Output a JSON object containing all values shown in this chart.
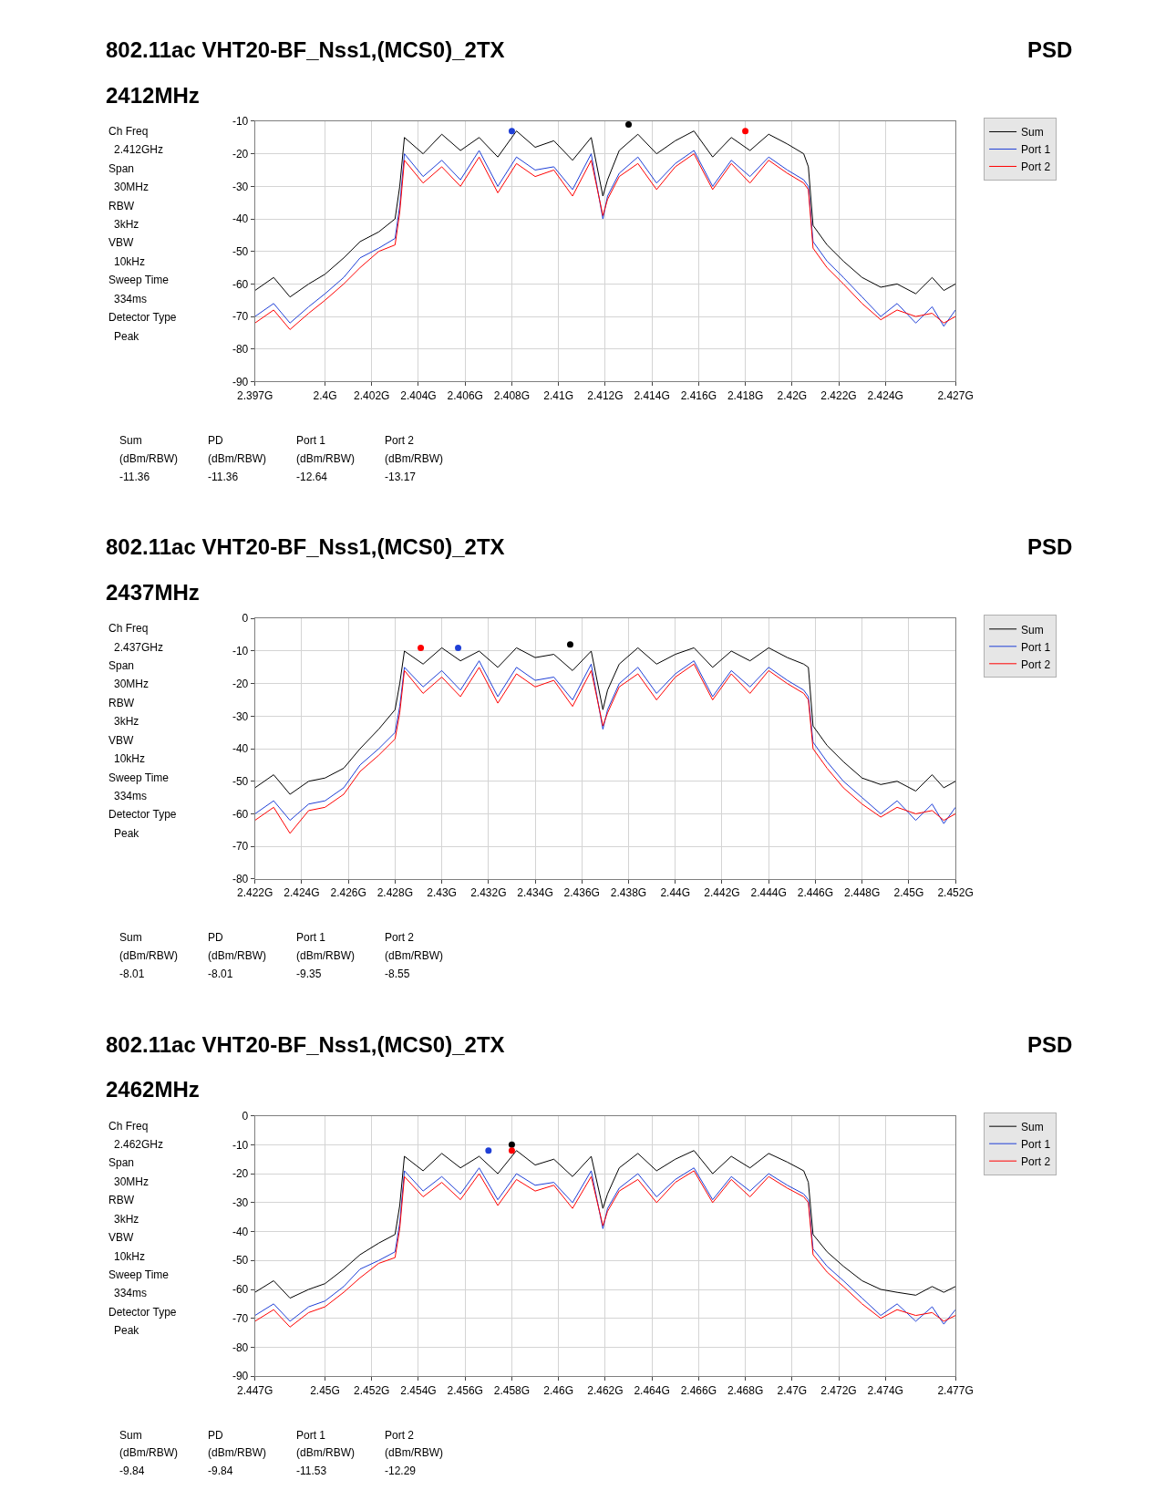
{
  "chart_data": [
    {
      "type": "line",
      "title": "802.11ac VHT20-BF_Nss1,(MCS0)_2TX",
      "subtitle": "2412MHz",
      "grid": true,
      "legend": "right",
      "annotations": [
        "PSD",
        "Ch Freq",
        "2.412GHz",
        "Span",
        "30MHz",
        "RBW",
        "3kHz",
        "VBW",
        "10kHz",
        "Sweep Time",
        "334ms",
        "Detector Type",
        "Peak",
        "Sum",
        "PD",
        "Port 1",
        "Port 2",
        "(dBm/RBW)",
        "(dBm/RBW)",
        "(dBm/RBW)",
        "(dBm/RBW)",
        "-11.36",
        "-11.36",
        "-12.64",
        "-13.17"
      ],
      "xlim": [
        2.397,
        2.427
      ],
      "ylim": [
        -90,
        -10
      ],
      "xticks": [
        {
          "value": 2.397,
          "label": "2.397G"
        },
        {
          "value": 2.4,
          "label": "2.4G"
        },
        {
          "value": 2.402,
          "label": "2.402G"
        },
        {
          "value": 2.404,
          "label": "2.404G"
        },
        {
          "value": 2.406,
          "label": "2.406G"
        },
        {
          "value": 2.408,
          "label": "2.408G"
        },
        {
          "value": 2.41,
          "label": "2.41G"
        },
        {
          "value": 2.412,
          "label": "2.412G"
        },
        {
          "value": 2.414,
          "label": "2.414G"
        },
        {
          "value": 2.416,
          "label": "2.416G"
        },
        {
          "value": 2.418,
          "label": "2.418G"
        },
        {
          "value": 2.42,
          "label": "2.42G"
        },
        {
          "value": 2.422,
          "label": "2.422G"
        },
        {
          "value": 2.424,
          "label": "2.424G"
        },
        {
          "value": 2.427,
          "label": "2.427G"
        }
      ],
      "yticks": [
        -90,
        -80,
        -70,
        -60,
        -50,
        -40,
        -30,
        -20,
        -10
      ],
      "x": [
        2.397,
        2.3978,
        2.3985,
        2.3993,
        2.4,
        2.4008,
        2.4015,
        2.4023,
        2.403,
        2.4032,
        2.4034,
        2.4042,
        2.405,
        2.4058,
        2.4066,
        2.4074,
        2.4082,
        2.409,
        2.4098,
        2.4106,
        2.4114,
        2.4119,
        2.4121,
        2.4126,
        2.4134,
        2.4142,
        2.415,
        2.4158,
        2.4166,
        2.4174,
        2.4182,
        2.419,
        2.4198,
        2.4205,
        2.4207,
        2.4209,
        2.4215,
        2.4222,
        2.423,
        2.4238,
        2.4245,
        2.4253,
        2.426,
        2.4265,
        2.427
      ],
      "series": [
        {
          "name": "Sum",
          "color": "#000000",
          "values": [
            -62,
            -58,
            -64,
            -60,
            -57,
            -52,
            -47,
            -44,
            -40,
            -30,
            -15,
            -20,
            -14,
            -19,
            -15,
            -21,
            -13,
            -18,
            -16,
            -22,
            -15,
            -33,
            -28,
            -19,
            -14,
            -20,
            -16,
            -13,
            -21,
            -15,
            -19,
            -14,
            -17,
            -20,
            -24,
            -42,
            -48,
            -53,
            -58,
            -61,
            -60,
            -63,
            -58,
            -62,
            -60
          ]
        },
        {
          "name": "Port 1",
          "color": "#1f3fd6",
          "values": [
            -70,
            -66,
            -72,
            -67,
            -63,
            -58,
            -52,
            -49,
            -46,
            -36,
            -20,
            -27,
            -22,
            -28,
            -19,
            -30,
            -21,
            -25,
            -24,
            -31,
            -20,
            -40,
            -33,
            -26,
            -21,
            -29,
            -23,
            -19,
            -30,
            -22,
            -27,
            -21,
            -25,
            -28,
            -30,
            -47,
            -53,
            -58,
            -64,
            -70,
            -66,
            -72,
            -67,
            -73,
            -68
          ]
        },
        {
          "name": "Port 2",
          "color": "#ff0000",
          "values": [
            -72,
            -68,
            -74,
            -69,
            -65,
            -60,
            -55,
            -50,
            -48,
            -38,
            -22,
            -29,
            -24,
            -30,
            -21,
            -32,
            -23,
            -27,
            -25,
            -33,
            -22,
            -39,
            -34,
            -27,
            -23,
            -31,
            -24,
            -20,
            -31,
            -23,
            -29,
            -22,
            -26,
            -29,
            -31,
            -49,
            -55,
            -60,
            -66,
            -71,
            -68,
            -70,
            -69,
            -72,
            -70
          ]
        },
        {
          "type": "scatter",
          "marker": "circle",
          "color": "#000000",
          "x": [
            2.413
          ],
          "values": [
            -11
          ]
        },
        {
          "type": "scatter",
          "marker": "circle",
          "color": "#1f3fd6",
          "x": [
            2.408
          ],
          "values": [
            -13
          ]
        },
        {
          "type": "scatter",
          "marker": "circle",
          "color": "#ff0000",
          "x": [
            2.418
          ],
          "values": [
            -13
          ]
        }
      ]
    },
    {
      "type": "line",
      "title": "802.11ac VHT20-BF_Nss1,(MCS0)_2TX",
      "subtitle": "2437MHz",
      "grid": true,
      "legend": "right",
      "annotations": [
        "PSD",
        "Ch Freq",
        "2.437GHz",
        "Span",
        "30MHz",
        "RBW",
        "3kHz",
        "VBW",
        "10kHz",
        "Sweep Time",
        "334ms",
        "Detector Type",
        "Peak",
        "Sum",
        "PD",
        "Port 1",
        "Port 2",
        "(dBm/RBW)",
        "(dBm/RBW)",
        "(dBm/RBW)",
        "(dBm/RBW)",
        "-8.01",
        "-8.01",
        "-9.35",
        "-8.55"
      ],
      "xlim": [
        2.422,
        2.452
      ],
      "ylim": [
        -80,
        0
      ],
      "xticks": [
        {
          "value": 2.422,
          "label": "2.422G"
        },
        {
          "value": 2.424,
          "label": "2.424G"
        },
        {
          "value": 2.426,
          "label": "2.426G"
        },
        {
          "value": 2.428,
          "label": "2.428G"
        },
        {
          "value": 2.43,
          "label": "2.43G"
        },
        {
          "value": 2.432,
          "label": "2.432G"
        },
        {
          "value": 2.434,
          "label": "2.434G"
        },
        {
          "value": 2.436,
          "label": "2.436G"
        },
        {
          "value": 2.438,
          "label": "2.438G"
        },
        {
          "value": 2.44,
          "label": "2.44G"
        },
        {
          "value": 2.442,
          "label": "2.442G"
        },
        {
          "value": 2.444,
          "label": "2.444G"
        },
        {
          "value": 2.446,
          "label": "2.446G"
        },
        {
          "value": 2.448,
          "label": "2.448G"
        },
        {
          "value": 2.45,
          "label": "2.45G"
        },
        {
          "value": 2.452,
          "label": "2.452G"
        }
      ],
      "yticks": [
        -80,
        -70,
        -60,
        -50,
        -40,
        -30,
        -20,
        -10,
        0
      ],
      "x": [
        2.422,
        2.4228,
        2.4235,
        2.4243,
        2.425,
        2.4258,
        2.4265,
        2.4273,
        2.428,
        2.4282,
        2.4284,
        2.4292,
        2.43,
        2.4308,
        2.4316,
        2.4324,
        2.4332,
        2.434,
        2.4348,
        2.4356,
        2.4364,
        2.4369,
        2.4371,
        2.4376,
        2.4384,
        2.4392,
        2.44,
        2.4408,
        2.4416,
        2.4424,
        2.4432,
        2.444,
        2.4448,
        2.4455,
        2.4457,
        2.4459,
        2.4465,
        2.4472,
        2.448,
        2.4488,
        2.4495,
        2.4503,
        2.451,
        2.4515,
        2.452
      ],
      "series": [
        {
          "name": "Sum",
          "color": "#000000",
          "values": [
            -52,
            -48,
            -54,
            -50,
            -49,
            -46,
            -40,
            -34,
            -28,
            -20,
            -10,
            -14,
            -9,
            -13,
            -10,
            -15,
            -9,
            -12,
            -11,
            -16,
            -10,
            -28,
            -22,
            -14,
            -9,
            -14,
            -11,
            -9,
            -15,
            -10,
            -13,
            -9,
            -12,
            -14,
            -15,
            -33,
            -39,
            -44,
            -49,
            -51,
            -50,
            -53,
            -48,
            -52,
            -50
          ]
        },
        {
          "name": "Port 1",
          "color": "#1f3fd6",
          "values": [
            -60,
            -56,
            -62,
            -57,
            -56,
            -52,
            -45,
            -40,
            -35,
            -27,
            -15,
            -21,
            -16,
            -22,
            -13,
            -24,
            -15,
            -19,
            -18,
            -25,
            -14,
            -34,
            -28,
            -20,
            -15,
            -23,
            -17,
            -13,
            -24,
            -16,
            -21,
            -15,
            -19,
            -22,
            -24,
            -38,
            -44,
            -50,
            -55,
            -60,
            -56,
            -62,
            -57,
            -63,
            -58
          ]
        },
        {
          "name": "Port 2",
          "color": "#ff0000",
          "values": [
            -62,
            -58,
            -66,
            -59,
            -58,
            -54,
            -47,
            -42,
            -37,
            -29,
            -16,
            -23,
            -18,
            -24,
            -15,
            -26,
            -17,
            -21,
            -19,
            -27,
            -16,
            -33,
            -29,
            -21,
            -17,
            -25,
            -18,
            -14,
            -25,
            -17,
            -23,
            -16,
            -20,
            -23,
            -25,
            -40,
            -46,
            -52,
            -57,
            -61,
            -58,
            -60,
            -59,
            -62,
            -60
          ]
        },
        {
          "type": "scatter",
          "marker": "circle",
          "color": "#000000",
          "x": [
            2.4355
          ],
          "values": [
            -8
          ]
        },
        {
          "type": "scatter",
          "marker": "circle",
          "color": "#1f3fd6",
          "x": [
            2.4307
          ],
          "values": [
            -9
          ]
        },
        {
          "type": "scatter",
          "marker": "circle",
          "color": "#ff0000",
          "x": [
            2.4291
          ],
          "values": [
            -9
          ]
        }
      ]
    },
    {
      "type": "line",
      "title": "802.11ac VHT20-BF_Nss1,(MCS0)_2TX",
      "subtitle": "2462MHz",
      "grid": true,
      "legend": "right",
      "annotations": [
        "PSD",
        "Ch Freq",
        "2.462GHz",
        "Span",
        "30MHz",
        "RBW",
        "3kHz",
        "VBW",
        "10kHz",
        "Sweep Time",
        "334ms",
        "Detector Type",
        "Peak",
        "Sum",
        "PD",
        "Port 1",
        "Port 2",
        "(dBm/RBW)",
        "(dBm/RBW)",
        "(dBm/RBW)",
        "(dBm/RBW)",
        "-9.84",
        "-9.84",
        "-11.53",
        "-12.29"
      ],
      "xlim": [
        2.447,
        2.477
      ],
      "ylim": [
        -90,
        0
      ],
      "xticks": [
        {
          "value": 2.447,
          "label": "2.447G"
        },
        {
          "value": 2.45,
          "label": "2.45G"
        },
        {
          "value": 2.452,
          "label": "2.452G"
        },
        {
          "value": 2.454,
          "label": "2.454G"
        },
        {
          "value": 2.456,
          "label": "2.456G"
        },
        {
          "value": 2.458,
          "label": "2.458G"
        },
        {
          "value": 2.46,
          "label": "2.46G"
        },
        {
          "value": 2.462,
          "label": "2.462G"
        },
        {
          "value": 2.464,
          "label": "2.464G"
        },
        {
          "value": 2.466,
          "label": "2.466G"
        },
        {
          "value": 2.468,
          "label": "2.468G"
        },
        {
          "value": 2.47,
          "label": "2.47G"
        },
        {
          "value": 2.472,
          "label": "2.472G"
        },
        {
          "value": 2.474,
          "label": "2.474G"
        },
        {
          "value": 2.477,
          "label": "2.477G"
        }
      ],
      "yticks": [
        -90,
        -80,
        -70,
        -60,
        -50,
        -40,
        -30,
        -20,
        -10,
        0
      ],
      "x": [
        2.447,
        2.4478,
        2.4485,
        2.4493,
        2.45,
        2.4508,
        2.4515,
        2.4523,
        2.453,
        2.4532,
        2.4534,
        2.4542,
        2.455,
        2.4558,
        2.4566,
        2.4574,
        2.4582,
        2.459,
        2.4598,
        2.4606,
        2.4614,
        2.4619,
        2.4621,
        2.4626,
        2.4634,
        2.4642,
        2.465,
        2.4658,
        2.4666,
        2.4674,
        2.4682,
        2.469,
        2.4698,
        2.4705,
        2.4707,
        2.4709,
        2.4715,
        2.4722,
        2.473,
        2.4738,
        2.4745,
        2.4753,
        2.476,
        2.4765,
        2.477
      ],
      "series": [
        {
          "name": "Sum",
          "color": "#000000",
          "values": [
            -61,
            -57,
            -63,
            -60,
            -58,
            -53,
            -48,
            -44,
            -41,
            -31,
            -14,
            -19,
            -13,
            -18,
            -14,
            -20,
            -12,
            -17,
            -15,
            -21,
            -14,
            -32,
            -27,
            -18,
            -13,
            -19,
            -15,
            -12,
            -20,
            -14,
            -18,
            -13,
            -16,
            -19,
            -23,
            -41,
            -47,
            -52,
            -57,
            -60,
            -61,
            -62,
            -59,
            -61,
            -59
          ]
        },
        {
          "name": "Port 1",
          "color": "#1f3fd6",
          "values": [
            -69,
            -65,
            -71,
            -66,
            -64,
            -59,
            -53,
            -50,
            -47,
            -37,
            -19,
            -26,
            -21,
            -27,
            -18,
            -29,
            -20,
            -24,
            -23,
            -30,
            -19,
            -39,
            -32,
            -25,
            -20,
            -28,
            -22,
            -18,
            -29,
            -21,
            -26,
            -20,
            -24,
            -27,
            -29,
            -46,
            -52,
            -57,
            -63,
            -69,
            -65,
            -71,
            -66,
            -72,
            -67
          ]
        },
        {
          "name": "Port 2",
          "color": "#ff0000",
          "values": [
            -71,
            -67,
            -73,
            -68,
            -66,
            -61,
            -56,
            -51,
            -49,
            -39,
            -21,
            -28,
            -23,
            -29,
            -20,
            -31,
            -22,
            -26,
            -24,
            -32,
            -21,
            -38,
            -33,
            -26,
            -22,
            -30,
            -23,
            -19,
            -30,
            -22,
            -28,
            -21,
            -25,
            -28,
            -30,
            -48,
            -54,
            -59,
            -65,
            -70,
            -67,
            -69,
            -68,
            -71,
            -69
          ]
        },
        {
          "type": "scatter",
          "marker": "circle",
          "color": "#000000",
          "x": [
            2.458
          ],
          "values": [
            -10
          ]
        },
        {
          "type": "scatter",
          "marker": "circle",
          "color": "#1f3fd6",
          "x": [
            2.457
          ],
          "values": [
            -12
          ]
        },
        {
          "type": "scatter",
          "marker": "circle",
          "color": "#ff0000",
          "x": [
            2.458
          ],
          "values": [
            -12
          ]
        }
      ]
    }
  ]
}
